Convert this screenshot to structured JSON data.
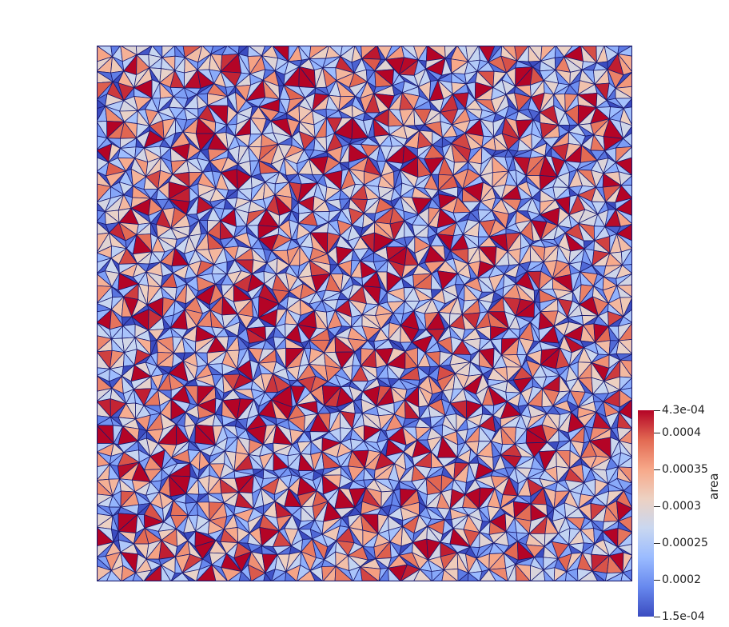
{
  "scalar_field": "area",
  "colorbar": {
    "title": "area",
    "min_label": "1.5e-04",
    "max_label": "4.3e-04",
    "min_value": 0.00015,
    "max_value": 0.00043,
    "ticks": [
      {
        "value": 0.00043,
        "label": "4.3e-04"
      },
      {
        "value": 0.0004,
        "label": "0.0004"
      },
      {
        "value": 0.00035,
        "label": "0.00035"
      },
      {
        "value": 0.0003,
        "label": "0.0003"
      },
      {
        "value": 0.00025,
        "label": "0.00025"
      },
      {
        "value": 0.0002,
        "label": "0.0002"
      },
      {
        "value": 0.00015,
        "label": "1.5e-04"
      }
    ],
    "colormap": [
      "#3b4cc0",
      "#6788ee",
      "#9abbff",
      "#c9d7f0",
      "#edd1c2",
      "#f7a889",
      "#e26952",
      "#b40426"
    ]
  },
  "mesh": {
    "edge_color": "#1a1a6e",
    "colormap_name": "coolwarm"
  }
}
